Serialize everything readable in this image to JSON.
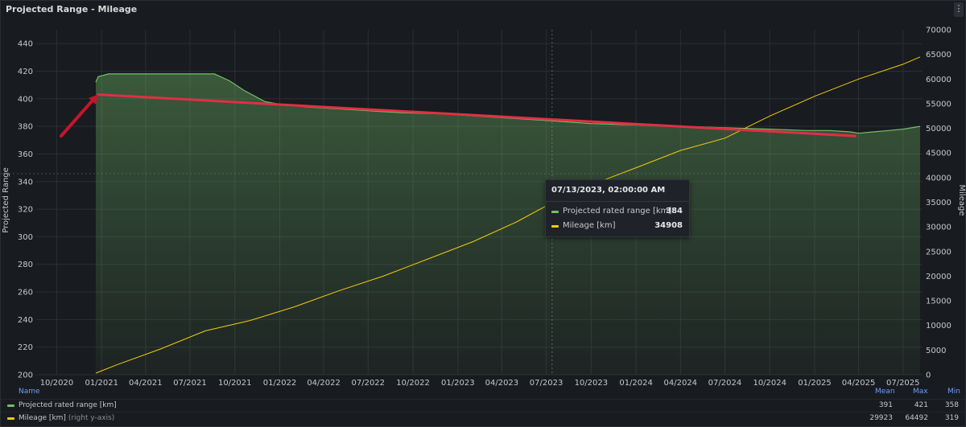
{
  "panel": {
    "title": "Projected Range - Mileage",
    "menu_icon": "⋮"
  },
  "chart_data": {
    "type": "line",
    "ylabel": "Projected Range",
    "y2label": "Mileage",
    "ylim": [
      200,
      450
    ],
    "y2lim": [
      0,
      70000
    ],
    "y_ticks": [
      200,
      220,
      240,
      260,
      280,
      300,
      320,
      340,
      360,
      380,
      400,
      420,
      440
    ],
    "y2_ticks": [
      0,
      5000,
      10000,
      15000,
      20000,
      25000,
      30000,
      35000,
      40000,
      45000,
      50000,
      55000,
      60000,
      65000,
      70000
    ],
    "x_ticks": [
      "10/2020",
      "01/2021",
      "04/2021",
      "07/2021",
      "10/2021",
      "01/2022",
      "04/2022",
      "07/2022",
      "10/2022",
      "01/2023",
      "04/2023",
      "07/2023",
      "10/2023",
      "01/2024",
      "04/2024",
      "07/2024",
      "10/2024",
      "01/2025",
      "04/2025",
      "07/2025"
    ],
    "xlim": [
      "2020-08-20",
      "2025-08-10"
    ],
    "grid": true,
    "series": [
      {
        "name": "Projected rated range [km]",
        "axis": "left",
        "color": "#73bf69",
        "x": [
          "2020-12-20",
          "2020-12-25",
          "2021-01-15",
          "2021-03-01",
          "2021-05-01",
          "2021-07-01",
          "2021-08-20",
          "2021-09-20",
          "2021-10-20",
          "2021-12-01",
          "2022-01-01",
          "2022-03-01",
          "2022-06-01",
          "2022-09-01",
          "2022-12-01",
          "2023-03-01",
          "2023-07-13",
          "2023-10-01",
          "2024-01-01",
          "2024-04-01",
          "2024-07-01",
          "2024-10-01",
          "2024-12-15",
          "2025-02-01",
          "2025-03-15",
          "2025-04-01",
          "2025-05-01",
          "2025-06-01",
          "2025-07-01",
          "2025-08-05"
        ],
        "values": [
          412,
          416,
          418,
          418,
          418,
          418,
          418,
          413,
          406,
          398,
          396,
          394,
          392,
          390,
          389,
          387,
          384,
          382,
          381,
          380,
          379,
          378,
          377,
          377,
          376,
          375,
          376,
          377,
          378,
          380
        ]
      },
      {
        "name": "Mileage [km]",
        "axis": "right",
        "color": "#f2cc0c",
        "x": [
          "2020-12-20",
          "2021-02-01",
          "2021-05-01",
          "2021-08-01",
          "2021-11-01",
          "2022-02-01",
          "2022-05-01",
          "2022-08-01",
          "2022-11-01",
          "2023-02-01",
          "2023-05-01",
          "2023-07-13",
          "2023-10-01",
          "2024-01-01",
          "2024-04-01",
          "2024-07-01",
          "2024-10-01",
          "2025-01-01",
          "2025-04-01",
          "2025-07-01",
          "2025-08-05"
        ],
        "values": [
          319,
          2000,
          5200,
          8900,
          11000,
          13800,
          17000,
          20000,
          23500,
          27000,
          31000,
          34908,
          38500,
          42000,
          45500,
          48000,
          52500,
          56500,
          60000,
          63000,
          64492
        ]
      }
    ],
    "trend_line": {
      "from": [
        "2020-12-25",
        403
      ],
      "to": [
        "2025-03-25",
        373
      ]
    },
    "annotation_arrow": {
      "from": [
        "2020-10-10",
        373
      ],
      "to": [
        "2020-12-25",
        403
      ]
    }
  },
  "tooltip": {
    "time": "07/13/2023, 02:00:00 AM",
    "rows": [
      {
        "name": "Projected rated range [km]",
        "value": "384",
        "color": "#73bf69"
      },
      {
        "name": "Mileage [km]",
        "value": "34908",
        "color": "#f2cc0c"
      }
    ]
  },
  "legend": {
    "headers": {
      "name": "Name",
      "mean": "Mean",
      "max": "Max",
      "min": "Min"
    },
    "rows": [
      {
        "name": "Projected rated range [km]",
        "suffix": "",
        "mean": "391",
        "max": "421",
        "min": "358",
        "color": "#73bf69"
      },
      {
        "name": "Mileage [km]",
        "suffix": "(right y-axis)",
        "mean": "29923",
        "max": "64492",
        "min": "319",
        "color": "#f2cc0c"
      }
    ]
  }
}
